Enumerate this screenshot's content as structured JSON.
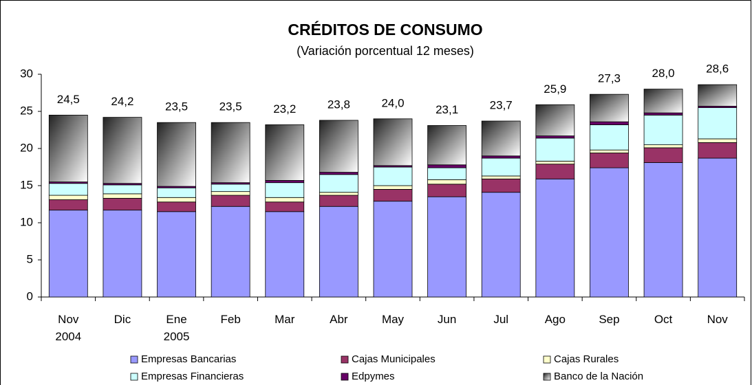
{
  "chart_data": {
    "type": "stacked_bar",
    "title": "CRÉDITOS DE CONSUMO",
    "subtitle": "(Variación porcentual 12 meses)",
    "categories": [
      "Nov\n2004",
      "Dic",
      "Ene\n2005",
      "Feb",
      "Mar",
      "Abr",
      "May",
      "Jun",
      "Jul",
      "Ago",
      "Sep",
      "Oct",
      "Nov"
    ],
    "series": [
      {
        "name": "Empresas Bancarias",
        "color": "#9999ff",
        "values": [
          11.7,
          11.7,
          11.5,
          12.2,
          11.5,
          12.2,
          12.9,
          13.5,
          14.1,
          15.9,
          17.4,
          18.1,
          18.7
        ]
      },
      {
        "name": "Cajas Municipales",
        "color": "#993366",
        "values": [
          1.4,
          1.6,
          1.3,
          1.5,
          1.3,
          1.5,
          1.6,
          1.7,
          1.8,
          2.0,
          2.0,
          2.0,
          2.1
        ]
      },
      {
        "name": "Cajas Rurales",
        "color": "#ffffcc",
        "values": [
          0.6,
          0.6,
          0.6,
          0.5,
          0.6,
          0.4,
          0.5,
          0.6,
          0.4,
          0.4,
          0.4,
          0.4,
          0.5
        ]
      },
      {
        "name": "Empresas Financieras",
        "color": "#ccffff",
        "values": [
          1.6,
          1.2,
          1.3,
          1.0,
          2.0,
          2.4,
          2.5,
          1.6,
          2.4,
          3.1,
          3.4,
          4.0,
          4.2
        ]
      },
      {
        "name": "Edpymes",
        "color": "#660066",
        "values": [
          0.2,
          0.2,
          0.2,
          0.2,
          0.3,
          0.3,
          0.2,
          0.4,
          0.3,
          0.3,
          0.4,
          0.3,
          0.2
        ]
      },
      {
        "name": "Banco de la Nación",
        "color": "#808080",
        "values": [
          9.0,
          8.9,
          8.6,
          8.1,
          7.5,
          7.0,
          6.3,
          5.3,
          4.7,
          4.2,
          3.7,
          3.2,
          2.9
        ]
      }
    ],
    "totals": [
      24.5,
      24.2,
      23.5,
      23.5,
      23.2,
      23.8,
      24.0,
      23.1,
      23.7,
      25.9,
      27.3,
      28.0,
      28.6
    ],
    "total_labels": [
      "24,5",
      "24,2",
      "23,5",
      "23,5",
      "23,2",
      "23,8",
      "24,0",
      "23,1",
      "23,7",
      "25,9",
      "27,3",
      "28,0",
      "28,6"
    ],
    "ylim": [
      0,
      30
    ],
    "yticks": [
      0,
      5,
      10,
      15,
      20,
      25,
      30
    ],
    "grid": false,
    "legend": "bottom"
  }
}
